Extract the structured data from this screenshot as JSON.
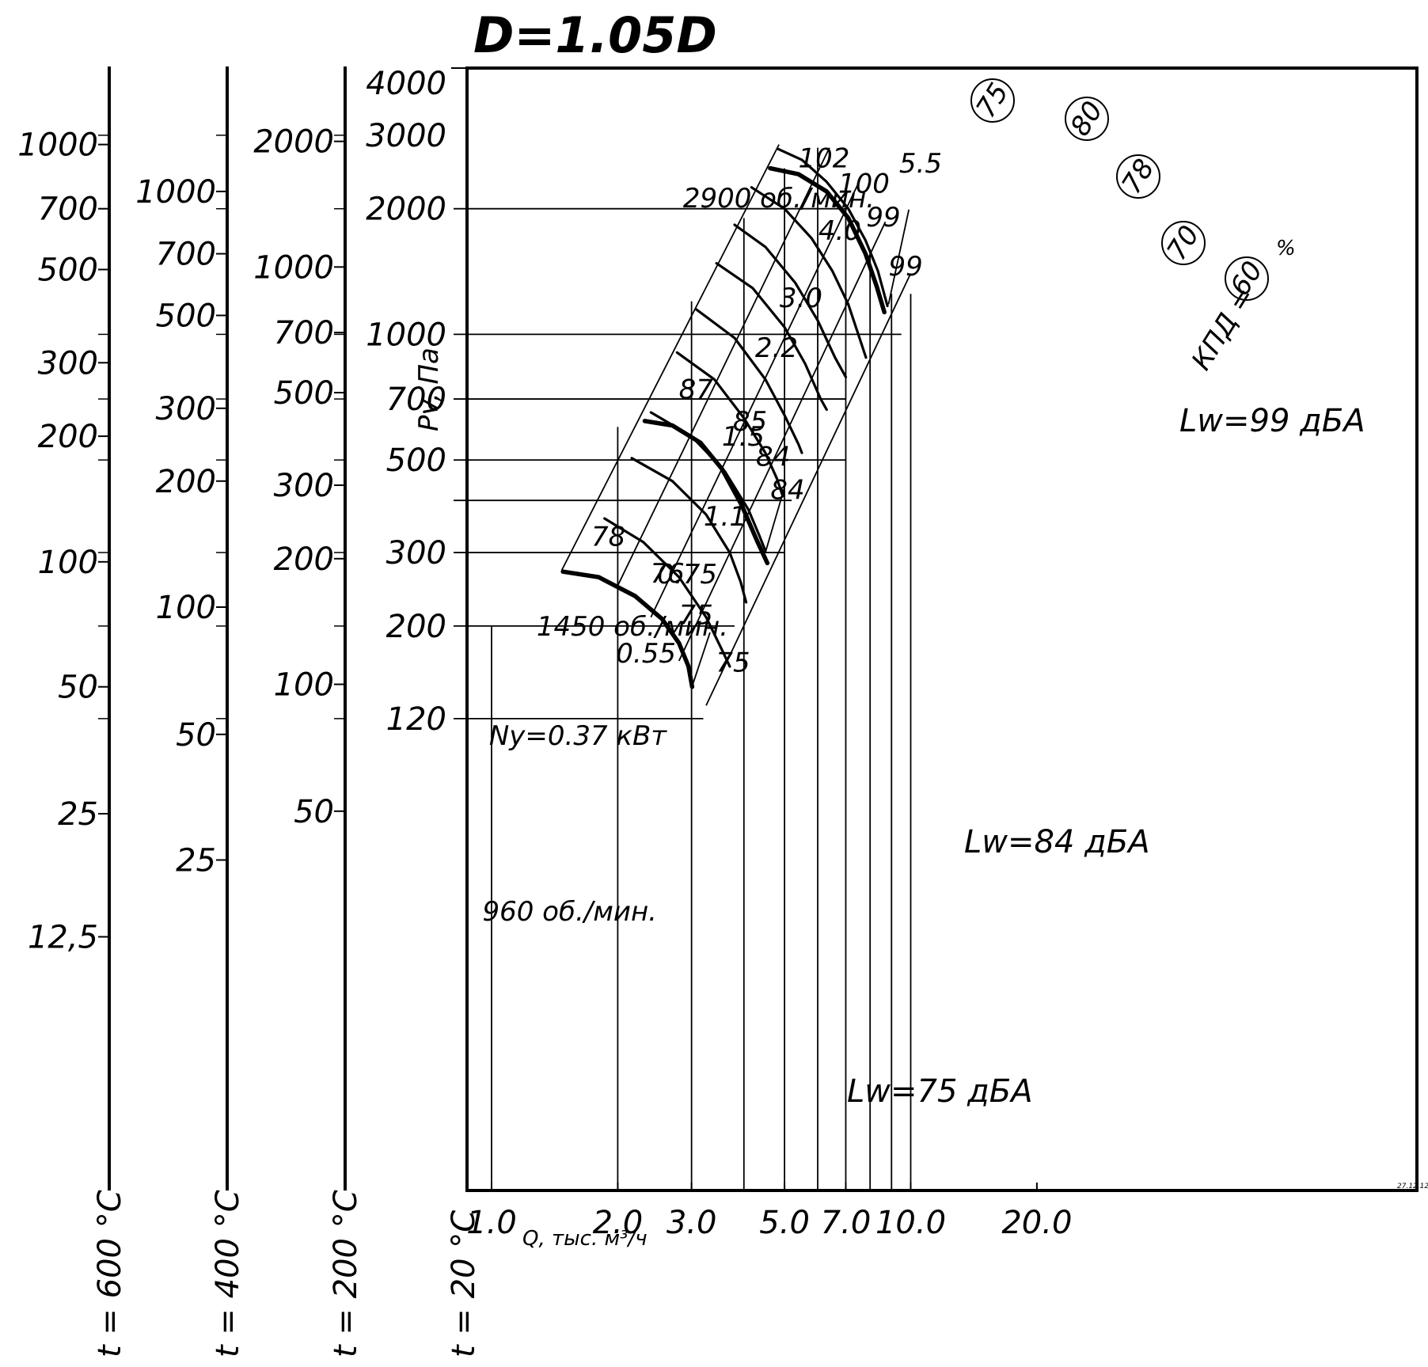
{
  "chart_data": {
    "type": "line",
    "title": "D=1.05D",
    "xlabel": "Q, тыс. м³/ч",
    "ylabel": "Pv, Па",
    "x_scale": "log",
    "y_scale": "log",
    "xlim": [
      0.9,
      21
    ],
    "ylim": [
      100,
      4000
    ],
    "x_tick_labels": [
      {
        "value": 1.0,
        "label": "1.0"
      },
      {
        "value": 2.0,
        "label": "2.0"
      },
      {
        "value": 3.0,
        "label": "3.0"
      },
      {
        "value": 5.0,
        "label": "5.0"
      },
      {
        "value": 7.0,
        "label": "7.0"
      },
      {
        "value": 10.0,
        "label": "10.0"
      },
      {
        "value": 20.0,
        "label": "20.0"
      }
    ],
    "x_unlabeled_ticks": [
      4.0,
      6.0,
      8.0,
      9.0
    ],
    "y_tick_labels": [
      {
        "value": 4000,
        "label": "4000"
      },
      {
        "value": 3000,
        "label": "3000"
      },
      {
        "value": 2000,
        "label": "2000"
      },
      {
        "value": 1000,
        "label": "1000"
      },
      {
        "value": 700,
        "label": "700"
      },
      {
        "value": 500,
        "label": "500"
      },
      {
        "value": 300,
        "label": "300"
      },
      {
        "value": 200,
        "label": "200"
      },
      {
        "value": 120,
        "label": "120"
      }
    ],
    "gridlines_y": [
      {
        "value": 2000,
        "x_to": 7.0
      },
      {
        "value": 1000,
        "x_to": 9.5
      },
      {
        "value": 700,
        "x_to": 7.0
      },
      {
        "value": 500,
        "x_to": 7.0
      },
      {
        "value": 400,
        "x_to": 5.2
      },
      {
        "value": 300,
        "x_to": 5.0
      },
      {
        "value": 200,
        "x_to": 3.8
      },
      {
        "value": 120,
        "x_to": 3.2
      }
    ],
    "gridlines_x": [
      {
        "value": 1.0,
        "y_to": 200
      },
      {
        "value": 2.0,
        "y_to": 600
      },
      {
        "value": 3.0,
        "y_to": 1200
      },
      {
        "value": 4.0,
        "y_to": 1900
      },
      {
        "value": 5.0,
        "y_to": 2500
      },
      {
        "value": 6.0,
        "y_to": 2800
      },
      {
        "value": 7.0,
        "y_to": 2050
      },
      {
        "value": 8.0,
        "y_to": 1600
      },
      {
        "value": 9.0,
        "y_to": 1250
      },
      {
        "value": 10.0,
        "y_to": 1250
      }
    ],
    "temperature_scales": [
      {
        "name": "t = 600 °C",
        "ticks": [
          {
            "label": "1000",
            "at": 2850
          },
          {
            "label": "700",
            "at": 2000
          },
          {
            "label": "500",
            "at": 1430
          },
          {
            "label": "300",
            "at": 855
          },
          {
            "label": "200",
            "at": 570
          },
          {
            "label": "100",
            "at": 285
          },
          {
            "label": "50",
            "at": 143
          },
          {
            "label": "25",
            "at": 71
          },
          {
            "label": "12,5",
            "at": 36
          }
        ]
      },
      {
        "name": "t = 400 °C",
        "ticks": [
          {
            "label": "1000",
            "at": 2200
          },
          {
            "label": "700",
            "at": 1560
          },
          {
            "label": "500",
            "at": 1110
          },
          {
            "label": "300",
            "at": 665
          },
          {
            "label": "200",
            "at": 445
          },
          {
            "label": "100",
            "at": 222
          },
          {
            "label": "50",
            "at": 110
          },
          {
            "label": "25",
            "at": 55
          }
        ]
      },
      {
        "name": "t = 200 °C",
        "ticks": [
          {
            "label": "2000",
            "at": 2900
          },
          {
            "label": "1000",
            "at": 1450
          },
          {
            "label": "700",
            "at": 1010
          },
          {
            "label": "500",
            "at": 725
          },
          {
            "label": "300",
            "at": 435
          },
          {
            "label": "200",
            "at": 290
          },
          {
            "label": "100",
            "at": 145
          },
          {
            "label": "50",
            "at": 72
          }
        ]
      },
      {
        "name": "t = 20 °C",
        "ticks": []
      }
    ],
    "speed_curves": [
      {
        "name": "2900 об./мин.",
        "points": [
          [
            4.62,
            2500
          ],
          [
            5.4,
            2420
          ],
          [
            6.3,
            2200
          ],
          [
            7.1,
            1900
          ],
          [
            7.8,
            1560
          ],
          [
            8.3,
            1300
          ],
          [
            8.65,
            1130
          ]
        ]
      },
      {
        "name": "1450 об./мин.",
        "points": [
          [
            2.32,
            620
          ],
          [
            2.7,
            605
          ],
          [
            3.15,
            550
          ],
          [
            3.55,
            475
          ],
          [
            3.95,
            390
          ],
          [
            4.3,
            320
          ],
          [
            4.55,
            283
          ]
        ]
      },
      {
        "name": "960 об./мин.",
        "points": [
          [
            1.48,
            270
          ],
          [
            1.8,
            262
          ],
          [
            2.2,
            236
          ],
          [
            2.55,
            208
          ],
          [
            2.8,
            182
          ],
          [
            2.95,
            160
          ],
          [
            3.01,
            143
          ]
        ]
      }
    ],
    "power_curves": [
      {
        "label": "5.5",
        "points": [
          [
            4.83,
            2780
          ],
          [
            5.5,
            2620
          ],
          [
            6.3,
            2320
          ],
          [
            7.1,
            2000
          ],
          [
            7.8,
            1680
          ],
          [
            8.35,
            1420
          ],
          [
            8.8,
            1170
          ]
        ]
      },
      {
        "label": "4.0",
        "points": [
          [
            4.17,
            2250
          ],
          [
            5.0,
            2000
          ],
          [
            5.8,
            1700
          ],
          [
            6.5,
            1420
          ],
          [
            7.1,
            1180
          ],
          [
            7.6,
            960
          ],
          [
            7.82,
            880
          ]
        ]
      },
      {
        "label": "3.0",
        "points": [
          [
            3.8,
            1830
          ],
          [
            4.5,
            1620
          ],
          [
            5.3,
            1330
          ],
          [
            6.0,
            1080
          ],
          [
            6.6,
            880
          ],
          [
            7.0,
            790
          ]
        ]
      },
      {
        "label": "2.2",
        "points": [
          [
            3.44,
            1480
          ],
          [
            4.2,
            1290
          ],
          [
            5.0,
            1040
          ],
          [
            5.6,
            850
          ],
          [
            6.1,
            700
          ],
          [
            6.3,
            660
          ]
        ]
      },
      {
        "label": "1.5",
        "points": [
          [
            3.07,
            1150
          ],
          [
            3.8,
            980
          ],
          [
            4.5,
            780
          ],
          [
            5.0,
            640
          ],
          [
            5.4,
            545
          ],
          [
            5.5,
            520
          ]
        ]
      },
      {
        "label": "1.1",
        "points": [
          [
            2.77,
            905
          ],
          [
            3.4,
            780
          ],
          [
            4.0,
            630
          ],
          [
            4.5,
            520
          ],
          [
            4.8,
            450
          ],
          [
            4.95,
            410
          ]
        ]
      },
      {
        "label": "0.75",
        "points": [
          [
            2.4,
            650
          ],
          [
            3.0,
            570
          ],
          [
            3.6,
            470
          ],
          [
            4.1,
            380
          ],
          [
            4.35,
            330
          ],
          [
            4.5,
            303
          ]
        ]
      },
      {
        "label": "0.55",
        "points": [
          [
            2.16,
            505
          ],
          [
            2.7,
            445
          ],
          [
            3.25,
            370
          ],
          [
            3.7,
            300
          ],
          [
            3.93,
            255
          ],
          [
            4.05,
            228
          ]
        ]
      },
      {
        "label": "Ny=0.37 кВт",
        "points": [
          [
            1.86,
            362
          ],
          [
            2.3,
            318
          ],
          [
            2.8,
            262
          ],
          [
            3.25,
            210
          ],
          [
            3.55,
            175
          ],
          [
            3.7,
            160
          ]
        ]
      }
    ],
    "efficiency_lines": [
      {
        "label": "75",
        "from": [
          4.85,
          2850
        ],
        "to": [
          1.47,
          272
        ]
      },
      {
        "label": "80",
        "from": [
          6.4,
          2800
        ],
        "to": [
          2.0,
          250
        ]
      },
      {
        "label": "78",
        "from": [
          7.5,
          2300
        ],
        "to": [
          2.4,
          210
        ]
      },
      {
        "label": "70",
        "from": [
          8.7,
          1860
        ],
        "to": [
          2.8,
          165
        ]
      },
      {
        "label": "60",
        "from": [
          10.0,
          1400
        ],
        "to": [
          3.25,
          129
        ]
      }
    ],
    "efficiency_prefix": "КПД =",
    "efficiency_unit": "%",
    "noise_lines": [
      {
        "label": "Lw=99 дБА",
        "from": [
          8.85,
          1180
        ],
        "to": [
          9.9,
          1990
        ]
      },
      {
        "label": "Lw=84 дБА",
        "from": [
          4.5,
          300
        ],
        "to": [
          5.0,
          430
        ]
      },
      {
        "label": "Lw=75 дБА",
        "from": [
          3.0,
          142
        ],
        "to": [
          3.32,
          193
        ]
      }
    ],
    "noise_values": [
      {
        "label": "102",
        "at": [
          5.3,
          2650
        ]
      },
      {
        "label": "100",
        "at": [
          6.6,
          2300
        ]
      },
      {
        "label": "99",
        "at": [
          7.7,
          1910
        ]
      },
      {
        "label": "99",
        "at": [
          8.7,
          1460
        ]
      },
      {
        "label": "87",
        "at": [
          2.75,
          740
        ]
      },
      {
        "label": "85",
        "at": [
          3.7,
          620
        ]
      },
      {
        "label": "84",
        "at": [
          4.2,
          510
        ]
      },
      {
        "label": "84",
        "at": [
          4.55,
          425
        ]
      },
      {
        "label": "78",
        "at": [
          1.7,
          328
        ]
      },
      {
        "label": "76",
        "at": [
          2.35,
          268
        ]
      },
      {
        "label": "75",
        "at": [
          2.75,
          213
        ]
      },
      {
        "label": "75",
        "at": [
          3.37,
          164
        ]
      }
    ],
    "corner_mark": "27.12.12"
  }
}
